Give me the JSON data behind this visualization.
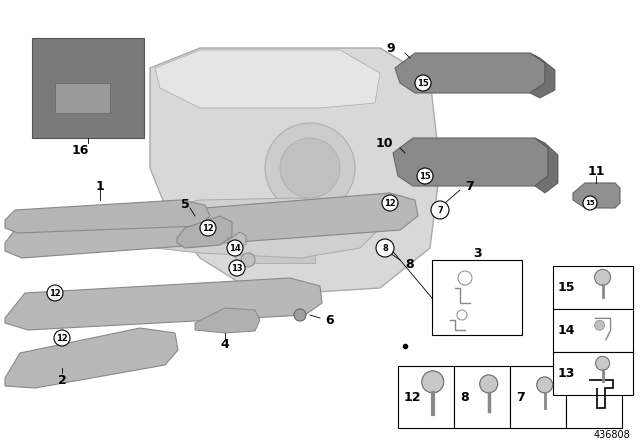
{
  "background_color": "#ffffff",
  "diagram_number": "436808",
  "fig_width": 6.4,
  "fig_height": 4.48,
  "dpi": 100,
  "part_color": "#b0b0b0",
  "part_edge": "#888888",
  "panel_color": "#d8d8d8",
  "panel_edge": "#aaaaaa",
  "dark_part": "#888888",
  "label_fs": 8,
  "circle_fs": 6,
  "num_fs": 9
}
